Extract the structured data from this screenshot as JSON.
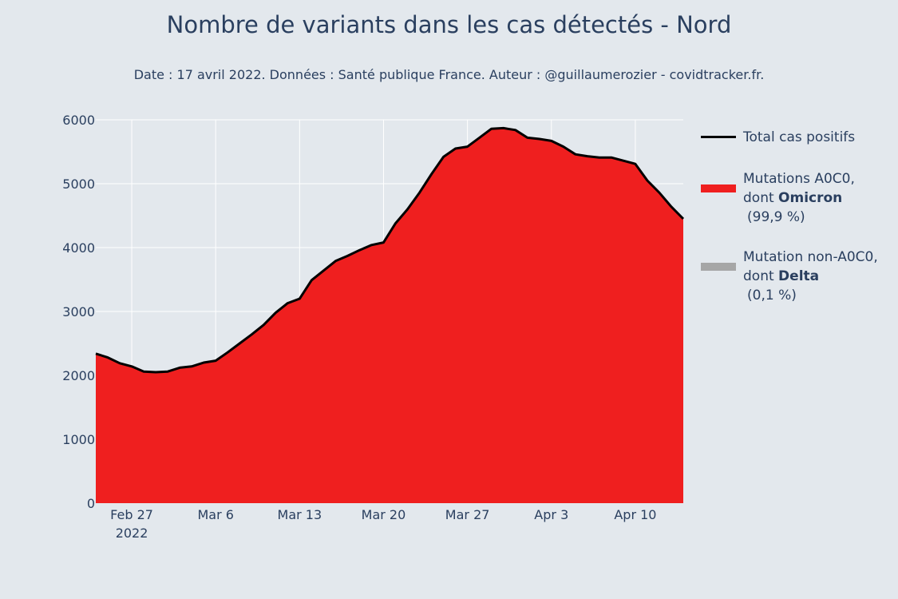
{
  "header": {
    "title": "Nombre de variants dans les cas détectés - Nord",
    "subtitle": "Date : 17 avril 2022. Données : Santé publique France. Auteur : @guillaumerozier - covidtracker.fr."
  },
  "legend": {
    "total": {
      "label": "Total cas positifs",
      "color": "#000000"
    },
    "omicron": {
      "line1": "Mutations A0C0,",
      "line2_prefix": "dont ",
      "line2_bold": "Omicron",
      "pct": "(99,9 %)",
      "color": "#ef1f1f"
    },
    "delta": {
      "line1": "Mutation non-A0C0,",
      "line2_prefix": "dont ",
      "line2_bold": "Delta",
      "pct": "(0,1 %)",
      "color": "#a6a6a6"
    }
  },
  "colors": {
    "background": "#e3e8ed",
    "grid": "#ffffff",
    "area": "#ef1f1f",
    "line": "#000000",
    "text": "#2a3f5f"
  },
  "chart_data": {
    "type": "area",
    "x_start": "2022-02-24",
    "x": [
      "2022-02-24",
      "2022-02-25",
      "2022-02-26",
      "2022-02-27",
      "2022-02-28",
      "2022-03-01",
      "2022-03-02",
      "2022-03-03",
      "2022-03-04",
      "2022-03-05",
      "2022-03-06",
      "2022-03-07",
      "2022-03-08",
      "2022-03-09",
      "2022-03-10",
      "2022-03-11",
      "2022-03-12",
      "2022-03-13",
      "2022-03-14",
      "2022-03-15",
      "2022-03-16",
      "2022-03-17",
      "2022-03-18",
      "2022-03-19",
      "2022-03-20",
      "2022-03-21",
      "2022-03-22",
      "2022-03-23",
      "2022-03-24",
      "2022-03-25",
      "2022-03-26",
      "2022-03-27",
      "2022-03-28",
      "2022-03-29",
      "2022-03-30",
      "2022-03-31",
      "2022-04-01",
      "2022-04-02",
      "2022-04-03",
      "2022-04-04",
      "2022-04-05",
      "2022-04-06",
      "2022-04-07",
      "2022-04-08",
      "2022-04-09",
      "2022-04-10",
      "2022-04-11",
      "2022-04-12",
      "2022-04-13",
      "2022-04-14"
    ],
    "series": [
      {
        "name": "Total cas positifs",
        "values": [
          2340,
          2280,
          2190,
          2140,
          2060,
          2050,
          2060,
          2120,
          2140,
          2200,
          2230,
          2360,
          2500,
          2640,
          2790,
          2980,
          3130,
          3200,
          3490,
          3640,
          3790,
          3870,
          3960,
          4040,
          4080,
          4380,
          4600,
          4860,
          5150,
          5420,
          5550,
          5580,
          5720,
          5860,
          5870,
          5840,
          5720,
          5700,
          5670,
          5580,
          5460,
          5430,
          5410,
          5410,
          5360,
          5310,
          5050,
          4860,
          4640,
          4450
        ]
      },
      {
        "name": "Mutations A0C0, dont Omicron (99,9 %)",
        "values": [
          2337,
          2278,
          2188,
          2138,
          2058,
          2048,
          2058,
          2118,
          2138,
          2198,
          2228,
          2358,
          2498,
          2638,
          2787,
          2977,
          3127,
          3197,
          3487,
          3636,
          3786,
          3866,
          3956,
          4036,
          4076,
          4376,
          4595,
          4855,
          5145,
          5415,
          5544,
          5574,
          5714,
          5854,
          5864,
          5834,
          5714,
          5694,
          5664,
          5574,
          5455,
          5425,
          5405,
          5405,
          5355,
          5305,
          5045,
          4855,
          4635,
          4446
        ]
      },
      {
        "name": "Mutation non-A0C0, dont Delta (0,1 %)",
        "values": [
          3,
          2,
          2,
          2,
          2,
          2,
          2,
          2,
          2,
          2,
          2,
          2,
          2,
          2,
          3,
          3,
          3,
          3,
          3,
          4,
          4,
          4,
          4,
          4,
          4,
          4,
          5,
          5,
          5,
          5,
          6,
          6,
          6,
          6,
          6,
          6,
          6,
          6,
          6,
          6,
          5,
          5,
          5,
          5,
          5,
          5,
          5,
          5,
          5,
          4
        ]
      }
    ],
    "ylim": [
      0,
      6000
    ],
    "y_ticks": [
      0,
      1000,
      2000,
      3000,
      4000,
      5000,
      6000
    ],
    "y_tick_labels": [
      "0",
      "1000",
      "2000",
      "3000",
      "4000",
      "5000",
      "6000"
    ],
    "x_ticks": [
      "2022-02-27",
      "2022-03-06",
      "2022-03-13",
      "2022-03-20",
      "2022-03-27",
      "2022-04-03",
      "2022-04-10"
    ],
    "x_tick_labels": [
      "Feb 27",
      "Mar 6",
      "Mar 13",
      "Mar 20",
      "Mar 27",
      "Apr 3",
      "Apr 10"
    ],
    "x_tick_sublabel": "2022",
    "xlabel": "",
    "ylabel": "",
    "grid": true,
    "legend_position": "right"
  }
}
